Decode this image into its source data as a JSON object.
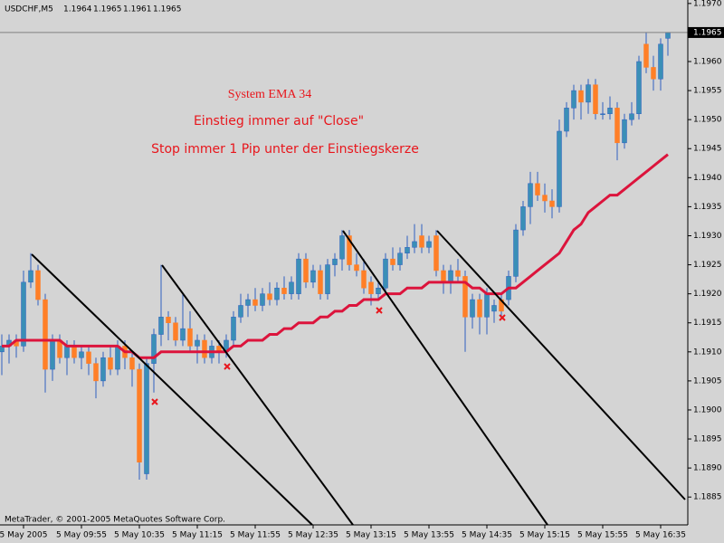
{
  "chart_data": {
    "type": "candlestick",
    "symbol": "USDCHF,M5",
    "annotations": [
      "System EMA 34",
      "Einstieg immer auf \"Close\"",
      "Stop immer 1 Pip unter der Einstiegskerze"
    ],
    "footer": "MetaTrader, © 2001-2005 MetaQuotes Software Corp.",
    "up_color": "#3a8fb7",
    "down_color": "#ff7f27",
    "wick_color": "#2f5fc0",
    "ema_color": "#dc143c",
    "categories": [
      null,
      null,
      null,
      "5 May 2005",
      null,
      null,
      null,
      null,
      null,
      null,
      null,
      "5 May 09:55",
      null,
      null,
      null,
      null,
      null,
      null,
      null,
      "5 May 10:35",
      null,
      null,
      null,
      null,
      null,
      null,
      null,
      "5 May 11:15",
      null,
      null,
      null,
      null,
      null,
      null,
      null,
      "5 May 11:55",
      null,
      null,
      null,
      null,
      null,
      null,
      null,
      "5 May 12:35",
      null,
      null,
      null,
      null,
      null,
      null,
      null,
      "5 May 13:15",
      null,
      null,
      null,
      null,
      null,
      null,
      null,
      "5 May 13:55",
      null,
      null,
      null,
      null,
      null,
      null,
      null,
      "5 May 14:35",
      null,
      null,
      null,
      null,
      null,
      null,
      null,
      "5 May 15:15",
      null,
      null,
      null,
      null,
      null,
      null,
      null,
      "5 May 15:55",
      null,
      null,
      null,
      null,
      null,
      null,
      null,
      "5 May 16:35",
      null
    ],
    "open": [
      1.191,
      1.1911,
      1.1912,
      1.1911,
      1.1922,
      1.1924,
      1.1919,
      1.1907,
      1.1912,
      1.1909,
      1.1911,
      1.1909,
      1.191,
      1.1908,
      1.1905,
      1.1909,
      1.1907,
      1.1911,
      1.1909,
      1.1907,
      1.1889,
      1.1908,
      1.1913,
      1.1916,
      1.1915,
      1.1912,
      1.1914,
      1.1911,
      1.1912,
      1.1909,
      1.1911,
      1.191,
      1.1912,
      1.1916,
      1.1918,
      1.1919,
      1.1918,
      1.192,
      1.1919,
      1.1921,
      1.192,
      1.192,
      1.1926,
      1.1922,
      1.1924,
      1.192,
      1.1925,
      1.1926,
      1.193,
      1.1925,
      1.1924,
      1.1922,
      1.192,
      1.1921,
      1.1926,
      1.1925,
      1.1927,
      1.1928,
      1.193,
      1.1928,
      1.193,
      1.1924,
      1.1922,
      1.1924,
      1.1923,
      1.1916,
      1.1919,
      1.1916,
      1.1917,
      1.1919,
      1.1919,
      1.1923,
      1.1931,
      1.1935,
      1.1939,
      1.1937,
      1.1936,
      1.1935,
      1.1948,
      1.1952,
      1.1955,
      1.1953,
      1.1956,
      1.1951,
      1.1951,
      1.1952,
      1.1946,
      1.195,
      1.1951,
      1.1963,
      1.1959,
      1.1957,
      1.1964
    ],
    "high": [
      1.1913,
      1.1913,
      1.1913,
      1.1924,
      1.1927,
      1.1925,
      1.192,
      1.1913,
      1.1913,
      1.1912,
      1.1912,
      1.1911,
      1.1911,
      1.1909,
      1.191,
      1.1911,
      1.1912,
      1.1912,
      1.191,
      1.1908,
      1.1909,
      1.1914,
      1.1925,
      1.1917,
      1.1916,
      1.192,
      1.1917,
      1.1913,
      1.1913,
      1.1912,
      1.1912,
      1.1913,
      1.1917,
      1.192,
      1.192,
      1.1921,
      1.1921,
      1.1922,
      1.1922,
      1.1923,
      1.1923,
      1.1927,
      1.1927,
      1.1925,
      1.1925,
      1.1926,
      1.1927,
      1.1931,
      1.1931,
      1.1927,
      1.1926,
      1.1923,
      1.1922,
      1.1927,
      1.1928,
      1.1928,
      1.193,
      1.1932,
      1.1932,
      1.193,
      1.1931,
      1.1925,
      1.1925,
      1.1926,
      1.1924,
      1.192,
      1.192,
      1.1921,
      1.1919,
      1.192,
      1.1924,
      1.1932,
      1.1936,
      1.1941,
      1.1941,
      1.1939,
      1.1938,
      1.195,
      1.1953,
      1.1956,
      1.1956,
      1.1957,
      1.1957,
      1.1953,
      1.1954,
      1.1953,
      1.1951,
      1.1953,
      1.1961,
      1.1965,
      1.1961,
      1.1964,
      1.1965
    ],
    "low": [
      1.1906,
      1.1908,
      1.1909,
      1.191,
      1.1921,
      1.1918,
      1.1903,
      1.1905,
      1.1908,
      1.1906,
      1.1908,
      1.1907,
      1.1906,
      1.1902,
      1.1904,
      1.1906,
      1.1906,
      1.1907,
      1.1904,
      1.1888,
      1.1888,
      1.1903,
      1.1911,
      1.1912,
      1.1911,
      1.1911,
      1.191,
      1.1908,
      1.1908,
      1.1908,
      1.1908,
      1.1909,
      1.1911,
      1.1915,
      1.1916,
      1.1917,
      1.1917,
      1.1918,
      1.1918,
      1.1919,
      1.1919,
      1.1919,
      1.1921,
      1.1921,
      1.1919,
      1.1919,
      1.1923,
      1.1924,
      1.1924,
      1.1923,
      1.192,
      1.1918,
      1.1919,
      1.192,
      1.1924,
      1.1924,
      1.1926,
      1.1927,
      1.1927,
      1.1927,
      1.1923,
      1.192,
      1.192,
      1.1922,
      1.191,
      1.1914,
      1.1913,
      1.1913,
      1.1915,
      1.1916,
      1.1918,
      1.1922,
      1.193,
      1.1932,
      1.1936,
      1.1934,
      1.1933,
      1.1934,
      1.1947,
      1.195,
      1.195,
      1.1951,
      1.195,
      1.195,
      1.195,
      1.1943,
      1.1945,
      1.1949,
      1.195,
      1.1958,
      1.1955,
      1.1955,
      1.1961
    ],
    "close": [
      1.1911,
      1.1912,
      1.1911,
      1.1922,
      1.1924,
      1.1919,
      1.1907,
      1.1912,
      1.1909,
      1.1911,
      1.1909,
      1.191,
      1.1908,
      1.1905,
      1.1909,
      1.1907,
      1.1911,
      1.1909,
      1.1907,
      1.1891,
      1.1908,
      1.1913,
      1.1916,
      1.1915,
      1.1912,
      1.1914,
      1.1911,
      1.1912,
      1.1909,
      1.1911,
      1.191,
      1.1912,
      1.1916,
      1.1918,
      1.1919,
      1.1918,
      1.192,
      1.1919,
      1.1921,
      1.192,
      1.1922,
      1.1926,
      1.1922,
      1.1924,
      1.192,
      1.1925,
      1.1926,
      1.193,
      1.1925,
      1.1924,
      1.1921,
      1.192,
      1.1921,
      1.1926,
      1.1925,
      1.1927,
      1.1928,
      1.1929,
      1.1928,
      1.1929,
      1.1924,
      1.1922,
      1.1924,
      1.1923,
      1.1916,
      1.1919,
      1.1916,
      1.192,
      1.1918,
      1.1917,
      1.1923,
      1.1931,
      1.1935,
      1.1939,
      1.1937,
      1.1936,
      1.1935,
      1.1948,
      1.1952,
      1.1955,
      1.1953,
      1.1956,
      1.1951,
      1.1951,
      1.1952,
      1.1946,
      1.195,
      1.1951,
      1.196,
      1.1959,
      1.1957,
      1.1963,
      1.1965
    ],
    "ema": [
      1.1911,
      1.1911,
      1.1912,
      1.1912,
      1.1912,
      1.1912,
      1.1912,
      1.1912,
      1.1912,
      1.1911,
      1.1911,
      1.1911,
      1.1911,
      1.1911,
      1.1911,
      1.1911,
      1.1911,
      1.191,
      1.191,
      1.1909,
      1.1909,
      1.1909,
      1.191,
      1.191,
      1.191,
      1.191,
      1.191,
      1.191,
      1.191,
      1.191,
      1.191,
      1.191,
      1.1911,
      1.1911,
      1.1912,
      1.1912,
      1.1912,
      1.1913,
      1.1913,
      1.1914,
      1.1914,
      1.1915,
      1.1915,
      1.1915,
      1.1916,
      1.1916,
      1.1917,
      1.1917,
      1.1918,
      1.1918,
      1.1919,
      1.1919,
      1.1919,
      1.192,
      1.192,
      1.192,
      1.1921,
      1.1921,
      1.1921,
      1.1922,
      1.1922,
      1.1922,
      1.1922,
      1.1922,
      1.1922,
      1.1921,
      1.1921,
      1.192,
      1.192,
      1.192,
      1.1921,
      1.1921,
      1.1922,
      1.1923,
      1.1924,
      1.1925,
      1.1926,
      1.1927,
      1.1929,
      1.1931,
      1.1932,
      1.1934,
      1.1935,
      1.1936,
      1.1937,
      1.1937,
      1.1938,
      1.1939,
      1.194,
      1.1941,
      1.1942,
      1.1943,
      1.1944
    ],
    "ylim": [
      1.18802,
      1.19706
    ],
    "yticks": [
      {
        "value": 1.197,
        "label": "1.1970"
      },
      1.1965,
      {
        "value": 1.196,
        "label": "1.1960"
      },
      1.1955,
      {
        "value": 1.195,
        "label": "1.1950"
      },
      1.1945,
      {
        "value": 1.194,
        "label": "1.1940"
      },
      1.1935,
      {
        "value": 1.193,
        "label": "1.1930"
      },
      1.1925,
      {
        "value": 1.192,
        "label": "1.1920"
      },
      1.1915,
      {
        "value": 1.191,
        "label": "1.1910"
      },
      1.1905,
      {
        "value": 1.19,
        "label": "1.1900"
      },
      1.1895,
      {
        "value": 1.189,
        "label": "1.1890"
      },
      1.1885
    ],
    "grid": false
  }
}
